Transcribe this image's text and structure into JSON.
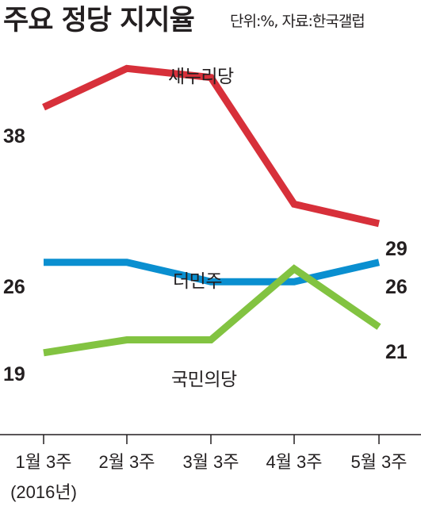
{
  "header": {
    "title": "주요 정당 지지율",
    "subtitle": "단위:%, 자료:한국갤럽"
  },
  "chart_data": {
    "type": "line",
    "title": "주요 정당 지지율",
    "subtitle": "단위:%, 자료:한국갤럽",
    "categories": [
      "1월 3주",
      "2월 3주",
      "3월 3주",
      "4월 3주",
      "5월 3주"
    ],
    "category_note": "(2016년)",
    "ylim": [
      15,
      42
    ],
    "grid": false,
    "legend": "inline labels",
    "series": [
      {
        "name": "새누리당",
        "color": "#d7303a",
        "values": [
          38,
          41,
          40.3,
          30.5,
          29
        ],
        "start_label": "38",
        "end_label": "29"
      },
      {
        "name": "더민주",
        "color": "#0a8fd0",
        "values": [
          26,
          26,
          24.5,
          24.5,
          26
        ],
        "start_label": "26",
        "end_label": "26"
      },
      {
        "name": "국민의당",
        "color": "#82c341",
        "values": [
          19,
          20,
          20,
          25.5,
          21
        ],
        "start_label": "19",
        "end_label": "21"
      }
    ]
  }
}
